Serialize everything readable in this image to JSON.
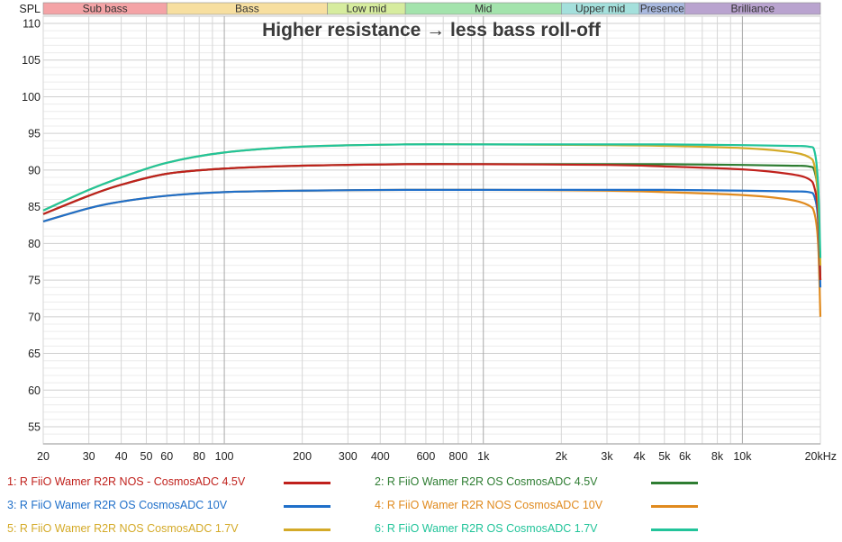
{
  "chart_data": {
    "type": "line",
    "title": "Higher resistance → less bass roll-off",
    "xlabel": "",
    "ylabel": "SPL",
    "xscale": "log",
    "xlim": [
      20,
      20000
    ],
    "ylim": [
      54,
      111
    ],
    "grid": true,
    "legend_position": "bottom",
    "y_ticks": [
      55,
      60,
      65,
      70,
      75,
      80,
      85,
      90,
      95,
      100,
      105,
      110
    ],
    "x_ticks": [
      {
        "value": 20,
        "label": "20"
      },
      {
        "value": 30,
        "label": "30"
      },
      {
        "value": 40,
        "label": "40"
      },
      {
        "value": 50,
        "label": "50"
      },
      {
        "value": 60,
        "label": "60"
      },
      {
        "value": 80,
        "label": "80"
      },
      {
        "value": 100,
        "label": "100"
      },
      {
        "value": 200,
        "label": "200"
      },
      {
        "value": 300,
        "label": "300"
      },
      {
        "value": 400,
        "label": "400"
      },
      {
        "value": 600,
        "label": "600"
      },
      {
        "value": 800,
        "label": "800"
      },
      {
        "value": 1000,
        "label": "1k"
      },
      {
        "value": 2000,
        "label": "2k"
      },
      {
        "value": 3000,
        "label": "3k"
      },
      {
        "value": 4000,
        "label": "4k"
      },
      {
        "value": 5000,
        "label": "5k"
      },
      {
        "value": 6000,
        "label": "6k"
      },
      {
        "value": 8000,
        "label": "8k"
      },
      {
        "value": 10000,
        "label": "10k"
      },
      {
        "value": 20000,
        "label": "20kHz"
      }
    ],
    "bands": [
      {
        "label": "Sub bass",
        "from": 20,
        "to": 60,
        "color": "#f4a3a6"
      },
      {
        "label": "Bass",
        "from": 60,
        "to": 250,
        "color": "#f7dfa0"
      },
      {
        "label": "Low mid",
        "from": 250,
        "to": 500,
        "color": "#d6ec9e"
      },
      {
        "label": "Mid",
        "from": 500,
        "to": 2000,
        "color": "#a3e3ac"
      },
      {
        "label": "Upper mid",
        "from": 2000,
        "to": 4000,
        "color": "#a4e0dc"
      },
      {
        "label": "Presence",
        "from": 4000,
        "to": 6000,
        "color": "#a9b9df"
      },
      {
        "label": "Brilliance",
        "from": 6000,
        "to": 20000,
        "color": "#b9a3cf"
      }
    ],
    "x": [
      20,
      30,
      40,
      60,
      100,
      200,
      500,
      1000,
      3000,
      5000,
      10000,
      15000,
      18000,
      19000,
      19600,
      20000
    ],
    "series": [
      {
        "name": "1: R FiiO Wamer R2R NOS - CosmosADC 4.5V",
        "color": "#c0211c",
        "values": [
          84.0,
          86.5,
          88.0,
          89.5,
          90.2,
          90.6,
          90.8,
          90.8,
          90.7,
          90.5,
          90.1,
          89.5,
          88.8,
          87.5,
          84.0,
          75.0
        ]
      },
      {
        "name": "2: R FiiO Wamer R2R OS  CosmosADC 4.5V",
        "color": "#2e7d32",
        "values": [
          84.0,
          86.5,
          88.0,
          89.5,
          90.2,
          90.6,
          90.8,
          90.8,
          90.8,
          90.8,
          90.7,
          90.6,
          90.5,
          89.8,
          86.0,
          75.0
        ]
      },
      {
        "name": "3: R FiiO Wamer R2R OS  CosmosADC 10V",
        "color": "#1f6fc9",
        "values": [
          83.0,
          84.8,
          85.7,
          86.5,
          87.0,
          87.2,
          87.3,
          87.3,
          87.3,
          87.3,
          87.2,
          87.1,
          87.0,
          86.3,
          83.0,
          74.0
        ]
      },
      {
        "name": "4: R FiiO Wamer R2R NOS  CosmosADC 10V",
        "color": "#e08a1e",
        "values": [
          83.0,
          84.8,
          85.7,
          86.5,
          87.0,
          87.2,
          87.3,
          87.3,
          87.2,
          87.0,
          86.6,
          86.0,
          85.2,
          84.0,
          80.0,
          70.0
        ]
      },
      {
        "name": "5: R FiiO Wamer R2R NOS  CosmosADC 1.7V",
        "color": "#d4aa28",
        "values": [
          84.5,
          87.3,
          89.0,
          91.0,
          92.4,
          93.2,
          93.5,
          93.5,
          93.4,
          93.3,
          93.0,
          92.5,
          91.8,
          90.5,
          86.0,
          77.0
        ]
      },
      {
        "name": "6: R FiiO Wamer R2R OS  CosmosADC 1.7V",
        "color": "#22c49a",
        "values": [
          84.5,
          87.3,
          89.0,
          91.0,
          92.4,
          93.2,
          93.5,
          93.5,
          93.5,
          93.5,
          93.4,
          93.3,
          93.2,
          92.5,
          88.0,
          78.0
        ]
      }
    ]
  },
  "axis": {
    "y_label": "SPL"
  },
  "legend": {
    "items": [
      {
        "label": "1: R FiiO Wamer R2R NOS - CosmosADC 4.5V",
        "color": "#c0211c"
      },
      {
        "label": "2: R FiiO Wamer R2R OS  CosmosADC 4.5V",
        "color": "#2e7d32"
      },
      {
        "label": "3: R FiiO Wamer R2R OS  CosmosADC 10V",
        "color": "#1f6fc9"
      },
      {
        "label": "4: R FiiO Wamer R2R NOS  CosmosADC 10V",
        "color": "#e08a1e"
      },
      {
        "label": "5: R FiiO Wamer R2R NOS  CosmosADC 1.7V",
        "color": "#d4aa28"
      },
      {
        "label": "6: R FiiO Wamer R2R OS  CosmosADC 1.7V",
        "color": "#22c49a"
      }
    ]
  }
}
